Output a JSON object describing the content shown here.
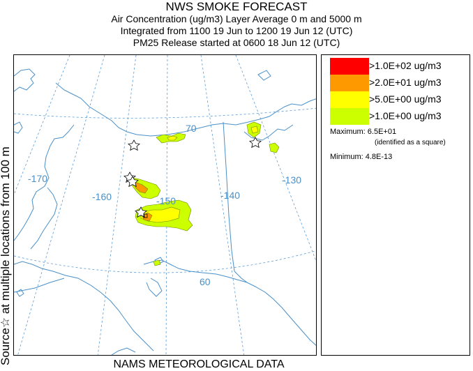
{
  "titles": {
    "main": "NWS SMOKE FORECAST",
    "line1": "Air Concentration (ug/m3) Layer Average    0 m and  5000 m",
    "line2": "Integrated from 1100 19 Jun to 1200 19 Jun 12 (UTC)",
    "line3": "PM25 Release started at 0600 18 Jun 12 (UTC)"
  },
  "side_label": "Source☆ at multiple locations   from  100 m",
  "footer": "NAMS METEOROLOGICAL DATA",
  "map": {
    "longitude_labels": [
      "-170",
      "-160",
      "-150",
      "-140",
      "-130"
    ],
    "latitude_labels": [
      "70",
      "60"
    ],
    "colors": {
      "coast": "#4a90c8",
      "grid": "#5b9bd5"
    }
  },
  "legend": {
    "items": [
      {
        "label": ">1.0E+02 ug/m3",
        "color": "#ff0000"
      },
      {
        "label": ">2.0E+01 ug/m3",
        "color": "#ff9900"
      },
      {
        "label": ">5.0E+00 ug/m3",
        "color": "#ffff00"
      },
      {
        "label": ">1.0E+00 ug/m3",
        "color": "#ccff00"
      }
    ],
    "maximum": "Maximum: 6.5E+01",
    "maximum_note": "(identified as a square)",
    "minimum": "Minimum: 4.8E-13"
  }
}
